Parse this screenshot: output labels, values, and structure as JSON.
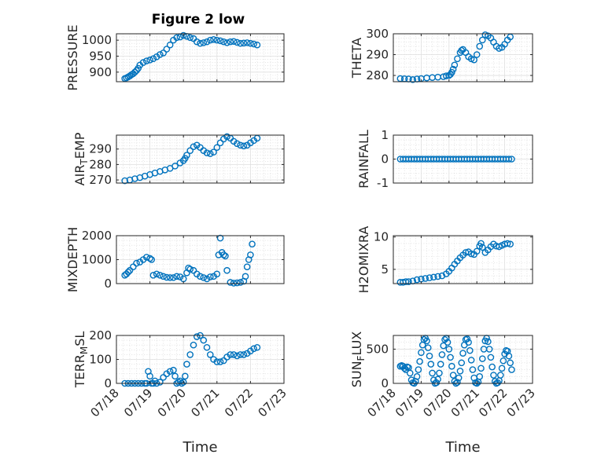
{
  "figure": {
    "title": "Figure 2 low",
    "marker_color": "#0072BD"
  },
  "chart_data": [
    {
      "type": "scatter",
      "ylabel": "PRESSURE",
      "ylim": [
        870,
        1020
      ],
      "yticks": [
        900,
        950,
        1000
      ],
      "xlim": [
        "07/18",
        "07/23"
      ],
      "xticks": [
        "07/18",
        "07/19",
        "07/20",
        "07/21",
        "07/22",
        "07/23"
      ],
      "xlabel": "",
      "series": [
        {
          "x": [
            0.25,
            0.3,
            0.35,
            0.4,
            0.45,
            0.5,
            0.55,
            0.6,
            0.65,
            0.7,
            0.8,
            0.9,
            1.0,
            1.1,
            1.2,
            1.3,
            1.4,
            1.5,
            1.6,
            1.7,
            1.8,
            1.9,
            2.0,
            2.1,
            2.2,
            2.3,
            2.4,
            2.5,
            2.6,
            2.7,
            2.8,
            2.9,
            3.0,
            3.1,
            3.2,
            3.3,
            3.4,
            3.5,
            3.6,
            3.7,
            3.8,
            3.9,
            4.0,
            4.1,
            4.2
          ],
          "y": [
            880,
            882,
            885,
            888,
            892,
            895,
            900,
            905,
            912,
            922,
            930,
            935,
            938,
            942,
            948,
            955,
            960,
            972,
            985,
            1000,
            1008,
            1010,
            1015,
            1012,
            1008,
            1005,
            995,
            990,
            992,
            995,
            1000,
            1002,
            1000,
            998,
            995,
            992,
            995,
            996,
            993,
            990,
            991,
            992,
            990,
            988,
            985
          ]
        }
      ]
    },
    {
      "type": "scatter",
      "ylabel": "THETA",
      "ylim": [
        277,
        300
      ],
      "yticks": [
        280,
        290,
        300
      ],
      "xlim": [
        "07/18",
        "07/23"
      ],
      "xticks": [
        "07/18",
        "07/19",
        "07/20",
        "07/21",
        "07/22",
        "07/23"
      ],
      "xlabel": "",
      "series": [
        {
          "x": [
            0.25,
            0.4,
            0.55,
            0.7,
            0.85,
            1.0,
            1.2,
            1.4,
            1.6,
            1.8,
            1.9,
            2.0,
            2.05,
            2.1,
            2.15,
            2.2,
            2.3,
            2.4,
            2.45,
            2.5,
            2.6,
            2.7,
            2.8,
            2.9,
            3.0,
            3.1,
            3.2,
            3.3,
            3.4,
            3.5,
            3.6,
            3.7,
            3.8,
            3.9,
            4.0,
            4.1,
            4.2
          ],
          "y": [
            278.5,
            278.4,
            278.3,
            278.0,
            278.3,
            278.5,
            278.8,
            279.0,
            279.2,
            279.4,
            279.8,
            280.0,
            280.5,
            281.5,
            283,
            285,
            288,
            291,
            292,
            292.5,
            291,
            289,
            288,
            287.5,
            290,
            294,
            297,
            299.5,
            299,
            298,
            296,
            294,
            293,
            293.5,
            295,
            297,
            298.5
          ]
        }
      ]
    },
    {
      "type": "scatter",
      "ylabel": "AIR",
      "ylabel_sub": "T",
      "ylabel_rest": "EMP",
      "ylim": [
        268,
        299
      ],
      "yticks": [
        270,
        280,
        290
      ],
      "xlim": [
        "07/18",
        "07/23"
      ],
      "xticks": [
        "07/18",
        "07/19",
        "07/20",
        "07/21",
        "07/22",
        "07/23"
      ],
      "xlabel": "",
      "series": [
        {
          "x": [
            0.25,
            0.4,
            0.55,
            0.7,
            0.85,
            1.0,
            1.15,
            1.3,
            1.45,
            1.6,
            1.75,
            1.9,
            2.0,
            2.05,
            2.1,
            2.2,
            2.3,
            2.4,
            2.5,
            2.6,
            2.7,
            2.8,
            2.9,
            3.0,
            3.1,
            3.2,
            3.3,
            3.4,
            3.5,
            3.6,
            3.7,
            3.8,
            3.9,
            4.0,
            4.1,
            4.2
          ],
          "y": [
            269.5,
            270,
            270.8,
            271.5,
            272.5,
            273.5,
            274.5,
            275.5,
            276.5,
            277.5,
            279,
            281,
            282.5,
            284,
            286,
            289,
            291.5,
            292.5,
            291,
            289,
            287.5,
            287,
            288,
            291,
            294,
            296.5,
            298,
            297,
            295,
            293.5,
            292.5,
            292,
            292.5,
            294,
            295.5,
            297
          ]
        }
      ]
    },
    {
      "type": "scatter",
      "ylabel": "RAINFALL",
      "ylim": [
        -1,
        1
      ],
      "yticks": [
        -1,
        0,
        1
      ],
      "xlim": [
        "07/18",
        "07/23"
      ],
      "xticks": [
        "07/18",
        "07/19",
        "07/20",
        "07/21",
        "07/22",
        "07/23"
      ],
      "xlabel": "",
      "series": [
        {
          "x": [
            0.25,
            0.35,
            0.45,
            0.55,
            0.65,
            0.75,
            0.85,
            0.95,
            1.05,
            1.15,
            1.25,
            1.35,
            1.45,
            1.55,
            1.65,
            1.75,
            1.85,
            1.95,
            2.05,
            2.15,
            2.25,
            2.35,
            2.45,
            2.55,
            2.65,
            2.75,
            2.85,
            2.95,
            3.05,
            3.15,
            3.25,
            3.35,
            3.45,
            3.55,
            3.65,
            3.75,
            3.85,
            3.95,
            4.05,
            4.15,
            4.25
          ],
          "y": [
            0,
            0,
            0,
            0,
            0,
            0,
            0,
            0,
            0,
            0,
            0,
            0,
            0,
            0,
            0,
            0,
            0,
            0,
            0,
            0,
            0,
            0,
            0,
            0,
            0,
            0,
            0,
            0,
            0,
            0,
            0,
            0,
            0,
            0,
            0,
            0,
            0,
            0,
            0,
            0,
            0
          ]
        }
      ]
    },
    {
      "type": "scatter",
      "ylabel": "MIXDEPTH",
      "ylim": [
        0,
        2000
      ],
      "yticks": [
        0,
        1000,
        2000
      ],
      "xlim": [
        "07/18",
        "07/23"
      ],
      "xticks": [
        "07/18",
        "07/19",
        "07/20",
        "07/21",
        "07/22",
        "07/23"
      ],
      "xlabel": "",
      "series": [
        {
          "x": [
            0.25,
            0.3,
            0.35,
            0.4,
            0.5,
            0.6,
            0.7,
            0.8,
            0.9,
            1.0,
            1.05,
            1.1,
            1.2,
            1.3,
            1.4,
            1.5,
            1.6,
            1.7,
            1.8,
            1.9,
            2.0,
            2.1,
            2.15,
            2.2,
            2.3,
            2.4,
            2.5,
            2.6,
            2.7,
            2.8,
            2.9,
            3.0,
            3.05,
            3.1,
            3.15,
            3.2,
            3.25,
            3.3,
            3.4,
            3.5,
            3.6,
            3.7,
            3.8,
            3.85,
            3.9,
            3.95,
            4.0,
            4.05
          ],
          "y": [
            350,
            400,
            480,
            550,
            700,
            850,
            900,
            1000,
            1100,
            1050,
            1000,
            350,
            400,
            350,
            300,
            260,
            250,
            250,
            300,
            280,
            200,
            450,
            650,
            600,
            550,
            400,
            300,
            250,
            200,
            280,
            300,
            400,
            1200,
            1900,
            1300,
            1200,
            1150,
            550,
            50,
            20,
            30,
            50,
            100,
            300,
            700,
            1000,
            1200,
            1650
          ]
        }
      ]
    },
    {
      "type": "scatter",
      "ylabel": "H2OMIXRA",
      "ylim": [
        2.8,
        10.2
      ],
      "yticks": [
        5,
        10
      ],
      "xlim": [
        "07/18",
        "07/23"
      ],
      "xticks": [
        "07/18",
        "07/19",
        "07/20",
        "07/21",
        "07/22",
        "07/23"
      ],
      "xlabel": "",
      "series": [
        {
          "x": [
            0.25,
            0.35,
            0.45,
            0.55,
            0.7,
            0.85,
            1.0,
            1.15,
            1.3,
            1.45,
            1.6,
            1.75,
            1.9,
            2.0,
            2.1,
            2.2,
            2.3,
            2.4,
            2.5,
            2.6,
            2.7,
            2.8,
            2.9,
            3.0,
            3.1,
            3.15,
            3.2,
            3.3,
            3.4,
            3.5,
            3.6,
            3.7,
            3.8,
            3.9,
            4.0,
            4.1,
            4.2
          ],
          "y": [
            3.0,
            3.0,
            3.1,
            3.1,
            3.2,
            3.4,
            3.5,
            3.6,
            3.7,
            3.8,
            3.9,
            4.0,
            4.3,
            4.7,
            5.2,
            5.8,
            6.3,
            6.8,
            7.2,
            7.6,
            7.7,
            7.4,
            7.3,
            7.8,
            8.6,
            9.0,
            8.4,
            7.6,
            8.0,
            8.5,
            8.9,
            8.6,
            8.5,
            8.7,
            8.9,
            9.0,
            8.9
          ]
        }
      ]
    },
    {
      "type": "scatter",
      "ylabel": "TERR",
      "ylabel_sub": "M",
      "ylabel_rest": "SL",
      "ylim": [
        0,
        200
      ],
      "yticks": [
        0,
        100,
        200
      ],
      "xlim": [
        "07/18",
        "07/23"
      ],
      "xticks": [
        "07/18",
        "07/19",
        "07/20",
        "07/21",
        "07/22",
        "07/23"
      ],
      "xlabel": "Time",
      "series": [
        {
          "x": [
            0.25,
            0.35,
            0.45,
            0.55,
            0.65,
            0.75,
            0.85,
            0.9,
            0.95,
            1.0,
            1.05,
            1.1,
            1.15,
            1.2,
            1.3,
            1.4,
            1.5,
            1.6,
            1.7,
            1.75,
            1.8,
            1.85,
            1.9,
            1.95,
            2.0,
            2.05,
            2.1,
            2.2,
            2.3,
            2.4,
            2.5,
            2.6,
            2.7,
            2.8,
            2.9,
            3.0,
            3.1,
            3.2,
            3.3,
            3.4,
            3.5,
            3.6,
            3.7,
            3.8,
            3.9,
            4.0,
            4.1,
            4.2
          ],
          "y": [
            0,
            0,
            0,
            0,
            0,
            0,
            0,
            0,
            50,
            30,
            0,
            0,
            10,
            0,
            5,
            25,
            40,
            50,
            55,
            30,
            0,
            5,
            10,
            0,
            5,
            30,
            80,
            120,
            160,
            195,
            200,
            180,
            150,
            120,
            100,
            90,
            90,
            95,
            110,
            120,
            120,
            115,
            120,
            120,
            125,
            135,
            145,
            150
          ]
        }
      ]
    },
    {
      "type": "scatter",
      "ylabel": "SUN",
      "ylabel_sub": "F",
      "ylabel_rest": "LUX",
      "ylim": [
        0,
        700
      ],
      "yticks": [
        0,
        500
      ],
      "xlim": [
        "07/18",
        "07/23"
      ],
      "xticks": [
        "07/18",
        "07/19",
        "07/20",
        "07/21",
        "07/22",
        "07/23"
      ],
      "xlabel": "Time",
      "series": [
        {
          "x": [
            0.25,
            0.3,
            0.35,
            0.4,
            0.45,
            0.5,
            0.55,
            0.6,
            0.65,
            0.7,
            0.75,
            0.8,
            0.85,
            0.9,
            0.95,
            1.0,
            1.05,
            1.1,
            1.15,
            1.2,
            1.25,
            1.3,
            1.35,
            1.4,
            1.45,
            1.5,
            1.55,
            1.6,
            1.65,
            1.7,
            1.75,
            1.8,
            1.85,
            1.9,
            1.95,
            2.0,
            2.05,
            2.1,
            2.15,
            2.2,
            2.25,
            2.3,
            2.35,
            2.4,
            2.45,
            2.5,
            2.55,
            2.6,
            2.65,
            2.7,
            2.75,
            2.8,
            2.85,
            2.9,
            2.95,
            3.0,
            3.05,
            3.1,
            3.15,
            3.2,
            3.25,
            3.3,
            3.35,
            3.4,
            3.45,
            3.5,
            3.55,
            3.6,
            3.65,
            3.7,
            3.75,
            3.8,
            3.85,
            3.9,
            3.95,
            4.0,
            4.05,
            4.1,
            4.15,
            4.2,
            4.25
          ],
          "y": [
            250,
            260,
            250,
            220,
            200,
            240,
            230,
            150,
            50,
            10,
            0,
            30,
            100,
            200,
            320,
            450,
            560,
            640,
            660,
            620,
            520,
            400,
            280,
            150,
            50,
            0,
            10,
            60,
            150,
            280,
            420,
            550,
            640,
            660,
            600,
            500,
            380,
            250,
            120,
            30,
            0,
            15,
            80,
            180,
            300,
            440,
            560,
            640,
            650,
            600,
            480,
            340,
            200,
            80,
            10,
            0,
            20,
            100,
            220,
            360,
            500,
            620,
            660,
            610,
            500,
            380,
            240,
            120,
            30,
            0,
            10,
            40,
            120,
            220,
            330,
            430,
            480,
            470,
            400,
            300,
            200
          ]
        }
      ]
    }
  ]
}
